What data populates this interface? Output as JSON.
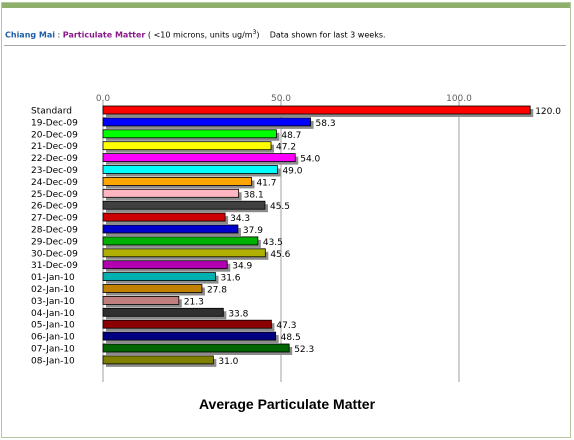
{
  "header": {
    "city": "Chiang Mai",
    "sep": " : ",
    "pollutant": "Particulate Matter",
    "units_pre": " ( <10 microns, units ug/m",
    "units_sup": "3",
    "units_post": ")",
    "note": "Data shown for last 3 weeks."
  },
  "colors": {
    "top_band": "#8fb06a",
    "shadow": "#8c8c8c"
  },
  "chart_data": {
    "type": "bar",
    "orientation": "horizontal",
    "title": "Average Particulate Matter",
    "xlim": [
      0,
      120
    ],
    "ticks": [
      "0.0",
      "50.0",
      "100.0"
    ],
    "grid": true,
    "categories": [
      "Standard",
      "19-Dec-09",
      "20-Dec-09",
      "21-Dec-09",
      "22-Dec-09",
      "23-Dec-09",
      "24-Dec-09",
      "25-Dec-09",
      "26-Dec-09",
      "27-Dec-09",
      "28-Dec-09",
      "29-Dec-09",
      "30-Dec-09",
      "31-Dec-09",
      "01-Jan-10",
      "02-Jan-10",
      "03-Jan-10",
      "04-Jan-10",
      "05-Jan-10",
      "06-Jan-10",
      "07-Jan-10",
      "08-Jan-10"
    ],
    "values": [
      120.0,
      58.3,
      48.7,
      47.2,
      54.0,
      49.0,
      41.7,
      38.1,
      45.5,
      34.3,
      37.9,
      43.5,
      45.6,
      34.9,
      31.6,
      27.8,
      21.3,
      33.8,
      47.3,
      48.5,
      52.3,
      31.0
    ],
    "value_labels": [
      "120.0",
      "58.3",
      "48.7",
      "47.2",
      "54.0",
      "49.0",
      "41.7",
      "38.1",
      "45.5",
      "34.3",
      "37.9",
      "43.5",
      "45.6",
      "34.9",
      "31.6",
      "27.8",
      "21.3",
      "33.8",
      "47.3",
      "48.5",
      "52.3",
      "31.0"
    ],
    "bar_colors": [
      "#ff0000",
      "#0000ff",
      "#00ff00",
      "#ffff00",
      "#ff00ff",
      "#00ffff",
      "#ffa500",
      "#ffb6c1",
      "#404040",
      "#cc0000",
      "#0000cc",
      "#00b000",
      "#b0b000",
      "#b000b0",
      "#00b0b0",
      "#c08000",
      "#c08080",
      "#303030",
      "#8b0000",
      "#000080",
      "#006400",
      "#808000"
    ]
  }
}
